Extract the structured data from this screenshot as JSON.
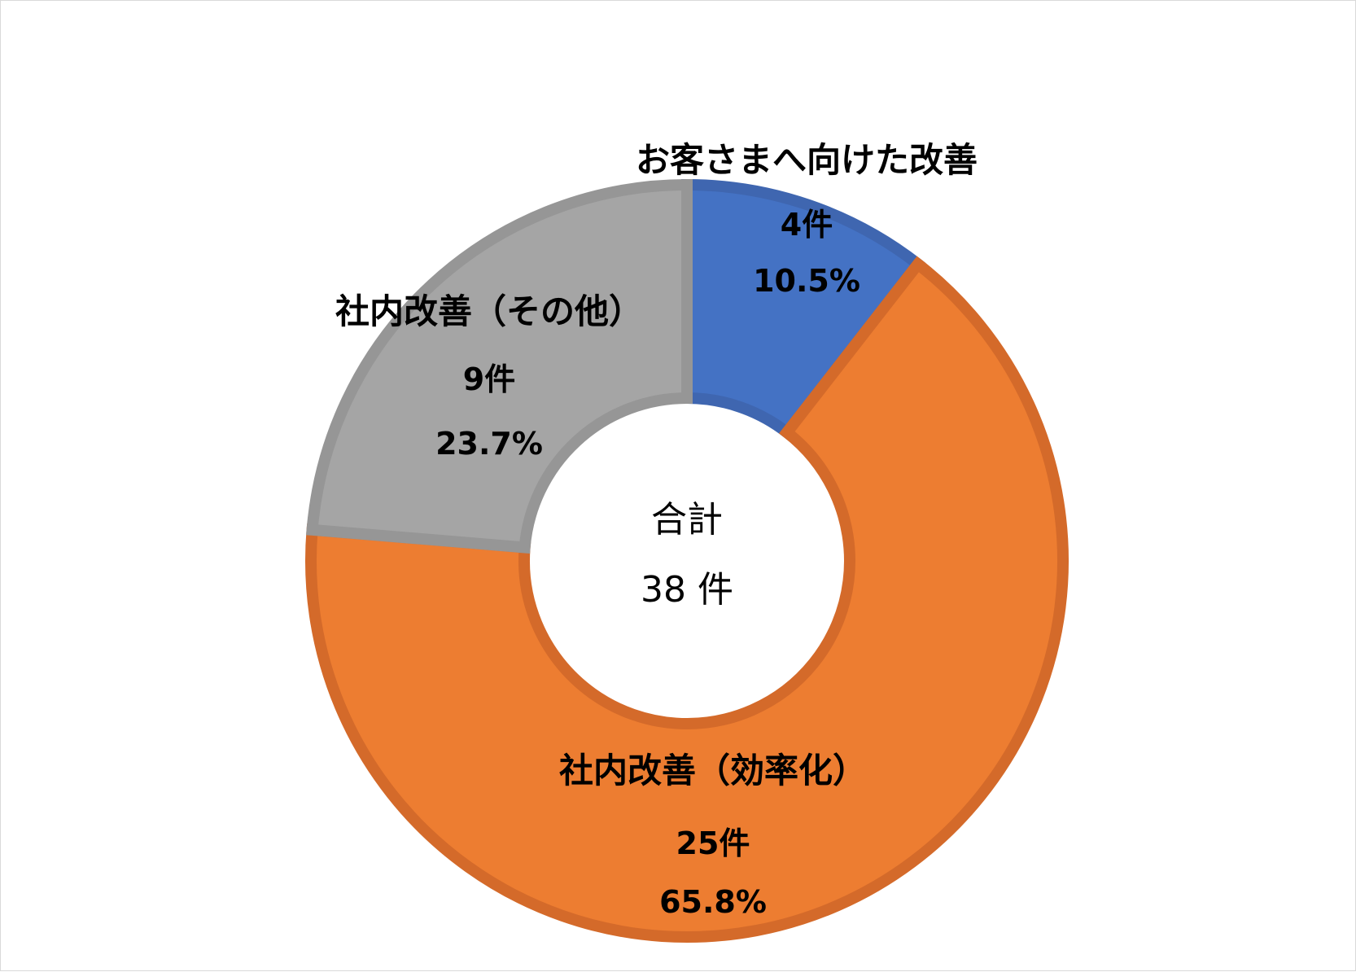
{
  "chart_data": {
    "type": "donut",
    "total_label": "合計",
    "total_value": "38 件",
    "slices": [
      {
        "name": "お客さまへ向けた改善",
        "count_label": "4件",
        "percent_label": "10.5%",
        "value": 4,
        "percent": 10.5,
        "color": "#4472c4",
        "border": "#3f66b0"
      },
      {
        "name": "社内改善（効率化）",
        "count_label": "25件",
        "percent_label": "65.8%",
        "value": 25,
        "percent": 65.8,
        "color": "#ed7d31",
        "border": "#d46a2a"
      },
      {
        "name": "社内改善（その他）",
        "count_label": "9件",
        "percent_label": "23.7%",
        "value": 9,
        "percent": 23.7,
        "color": "#a5a5a5",
        "border": "#969696"
      }
    ],
    "start": "12 o'clock, clockwise"
  }
}
